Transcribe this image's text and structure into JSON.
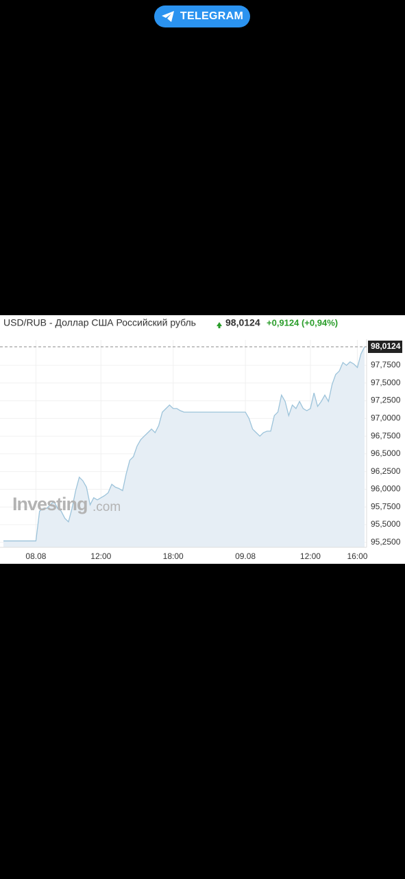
{
  "telegram_button": "TELEGRAM",
  "header": {
    "pair": "USD/RUB - Доллар США Российский рубль",
    "price": "98,0124",
    "change": "+0,9124 (+0,94%)"
  },
  "watermark": [
    "Investing",
    ".com"
  ],
  "chart_data": {
    "type": "area",
    "color": "#9cc3da",
    "fill": "#e6eef5",
    "grid": true,
    "categories": [
      null,
      null,
      null,
      null,
      null,
      null,
      null,
      null,
      null,
      "08.08",
      null,
      null,
      null,
      null,
      null,
      null,
      null,
      null,
      null,
      null,
      null,
      null,
      null,
      null,
      null,
      null,
      null,
      "12:00",
      null,
      null,
      null,
      null,
      null,
      null,
      null,
      null,
      null,
      null,
      null,
      null,
      null,
      null,
      null,
      null,
      null,
      null,
      null,
      "18:00",
      null,
      null,
      null,
      null,
      null,
      null,
      null,
      null,
      null,
      null,
      null,
      null,
      null,
      null,
      null,
      null,
      null,
      null,
      null,
      "09.08",
      null,
      null,
      null,
      null,
      null,
      null,
      null,
      null,
      null,
      null,
      null,
      null,
      null,
      null,
      null,
      null,
      null,
      "12:00",
      null,
      null,
      null,
      null,
      null,
      null,
      null,
      null,
      null,
      null,
      null,
      null,
      "16:00",
      null,
      null
    ],
    "values": [
      95.27,
      95.27,
      95.27,
      95.27,
      95.27,
      95.27,
      95.27,
      95.27,
      95.27,
      95.27,
      95.69,
      95.73,
      95.73,
      95.78,
      95.83,
      95.73,
      95.69,
      95.59,
      95.54,
      95.73,
      95.98,
      96.17,
      96.12,
      96.03,
      95.78,
      95.88,
      95.85,
      95.88,
      95.91,
      95.95,
      96.07,
      96.03,
      96.01,
      95.98,
      96.22,
      96.41,
      96.46,
      96.61,
      96.7,
      96.75,
      96.8,
      96.85,
      96.8,
      96.9,
      97.09,
      97.14,
      97.19,
      97.14,
      97.14,
      97.11,
      97.09,
      97.09,
      97.09,
      97.09,
      97.09,
      97.09,
      97.09,
      97.09,
      97.09,
      97.09,
      97.09,
      97.09,
      97.09,
      97.09,
      97.09,
      97.09,
      97.09,
      97.09,
      97.0,
      96.85,
      96.8,
      96.75,
      96.8,
      96.82,
      96.82,
      97.04,
      97.09,
      97.33,
      97.24,
      97.04,
      97.19,
      97.14,
      97.24,
      97.14,
      97.11,
      97.14,
      97.36,
      97.17,
      97.24,
      97.33,
      97.24,
      97.48,
      97.62,
      97.67,
      97.79,
      97.75,
      97.8,
      97.77,
      97.72,
      97.91,
      98.0124
    ],
    "ylim": [
      95.18,
      98.08
    ],
    "yticks": [
      {
        "value": 95.25,
        "label": "95,2500"
      },
      {
        "value": 95.5,
        "label": "95,5000"
      },
      {
        "value": 95.75,
        "label": "95,7500"
      },
      {
        "value": 96,
        "label": "96,0000"
      },
      {
        "value": 96.25,
        "label": "96,2500"
      },
      {
        "value": 96.5,
        "label": "96,5000"
      },
      {
        "value": 96.75,
        "label": "96,7500"
      },
      {
        "value": 97,
        "label": "97,0000"
      },
      {
        "value": 97.25,
        "label": "97,2500"
      },
      {
        "value": 97.5,
        "label": "97,5000"
      },
      {
        "value": 97.75,
        "label": "97,7500"
      }
    ]
  }
}
